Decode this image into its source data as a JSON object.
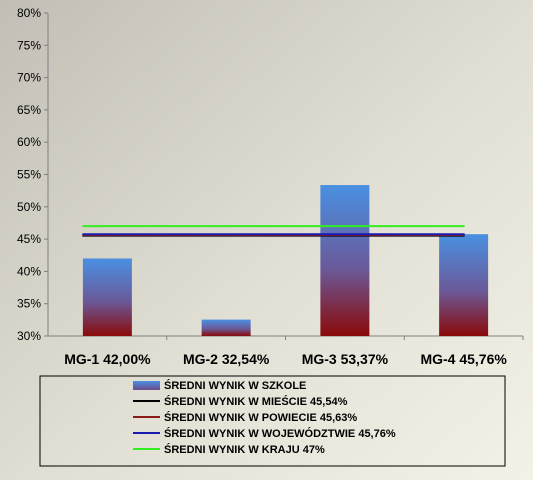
{
  "chart_data": {
    "type": "bar",
    "categories": [
      "MG-1 42,00%",
      "MG-2 32,54%",
      "MG-3 53,37%",
      "MG-4 45,76%"
    ],
    "series": [
      {
        "name": "ŚREDNI WYNIK W SZKOLE",
        "kind": "bar",
        "values": [
          42.0,
          32.54,
          53.37,
          45.76
        ]
      },
      {
        "name": "ŚREDNI WYNIK W MIEŚCIE 45,54%",
        "kind": "line",
        "value": 45.54,
        "color": "#000000"
      },
      {
        "name": "ŚREDNI WYNIK W POWIECIE 45,63%",
        "kind": "line",
        "value": 45.63,
        "color": "#8b1a1a"
      },
      {
        "name": "ŚREDNI WYNIK W WOJEWÓDZTWIE 45,76%",
        "kind": "line",
        "value": 45.76,
        "color": "#1a1ab0"
      },
      {
        "name": "ŚREDNI WYNIK W KRAJU 47%",
        "kind": "line",
        "value": 47.0,
        "color": "#33ee22"
      }
    ],
    "ylim": [
      30,
      80
    ],
    "yticks": [
      "30%",
      "35%",
      "40%",
      "45%",
      "50%",
      "55%",
      "60%",
      "65%",
      "70%",
      "75%",
      "80%"
    ],
    "ytick_values": [
      30,
      35,
      40,
      45,
      50,
      55,
      60,
      65,
      70,
      75,
      80
    ],
    "grid": false,
    "legend_position": "bottom",
    "colors": {
      "bar_top": "#4a8fe0",
      "bar_bottom": "#8a0a0a",
      "background_light": "#f0efe2",
      "background_dark": "#c9c6bd"
    }
  }
}
